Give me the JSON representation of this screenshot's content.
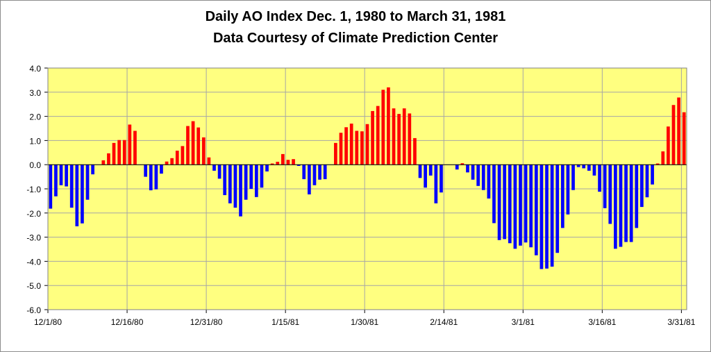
{
  "chart_data": {
    "type": "bar",
    "title": "Daily AO Index Dec. 1, 1980 to March 31, 1981",
    "subtitle": "Data Courtesy of Climate Prediction Center",
    "xlabel": "",
    "ylabel": "",
    "ylim": [
      -6.0,
      4.0
    ],
    "ytick_step": 1.0,
    "yticks": [
      "4.0",
      "3.0",
      "2.0",
      "1.0",
      "0.0",
      "-1.0",
      "-2.0",
      "-3.0",
      "-4.0",
      "-5.0",
      "-6.0"
    ],
    "x_tick_labels": [
      {
        "label": "12/1/80",
        "day": 0
      },
      {
        "label": "12/16/80",
        "day": 15
      },
      {
        "label": "12/31/80",
        "day": 30
      },
      {
        "label": "1/15/81",
        "day": 45
      },
      {
        "label": "1/30/81",
        "day": 60
      },
      {
        "label": "2/14/81",
        "day": 75
      },
      {
        "label": "3/1/81",
        "day": 90
      },
      {
        "label": "3/16/81",
        "day": 105
      },
      {
        "label": "3/31/81",
        "day": 120
      }
    ],
    "grid": true,
    "colors": {
      "positive": "#ff0000",
      "negative": "#0000ff",
      "plot_bg": "#ffff80",
      "grid": "#a6a6a6"
    },
    "values": [
      -1.82,
      -1.31,
      -0.85,
      -0.9,
      -1.78,
      -2.55,
      -2.43,
      -1.45,
      -0.4,
      0.0,
      0.18,
      0.47,
      0.9,
      1.02,
      1.02,
      1.66,
      1.4,
      0.0,
      -0.5,
      -1.06,
      -1.02,
      -0.37,
      0.13,
      0.27,
      0.58,
      0.77,
      1.6,
      1.8,
      1.54,
      1.13,
      0.3,
      -0.25,
      -0.58,
      -1.26,
      -1.6,
      -1.78,
      -2.14,
      -1.45,
      -1.0,
      -1.34,
      -0.95,
      -0.28,
      0.05,
      0.12,
      0.44,
      0.2,
      0.23,
      -0.05,
      -0.6,
      -1.23,
      -0.85,
      -0.62,
      -0.6,
      0.0,
      0.9,
      1.32,
      1.55,
      1.7,
      1.4,
      1.38,
      1.68,
      2.22,
      2.43,
      3.1,
      3.2,
      2.33,
      2.1,
      2.33,
      2.12,
      1.1,
      -0.55,
      -0.95,
      -0.45,
      -1.6,
      -1.15,
      0.0,
      0.0,
      -0.2,
      0.06,
      -0.32,
      -0.62,
      -0.88,
      -1.05,
      -1.4,
      -2.42,
      -3.12,
      -3.08,
      -3.25,
      -3.48,
      -3.35,
      -3.22,
      -3.42,
      -3.75,
      -4.32,
      -4.3,
      -4.22,
      -3.65,
      -2.62,
      -2.06,
      -1.05,
      -0.1,
      -0.15,
      -0.25,
      -0.45,
      -1.12,
      -1.8,
      -2.45,
      -3.48,
      -3.4,
      -3.2,
      -3.2,
      -2.62,
      -1.75,
      -1.35,
      -0.82,
      0.05,
      0.55,
      1.58,
      2.47,
      2.78,
      2.17
    ]
  }
}
